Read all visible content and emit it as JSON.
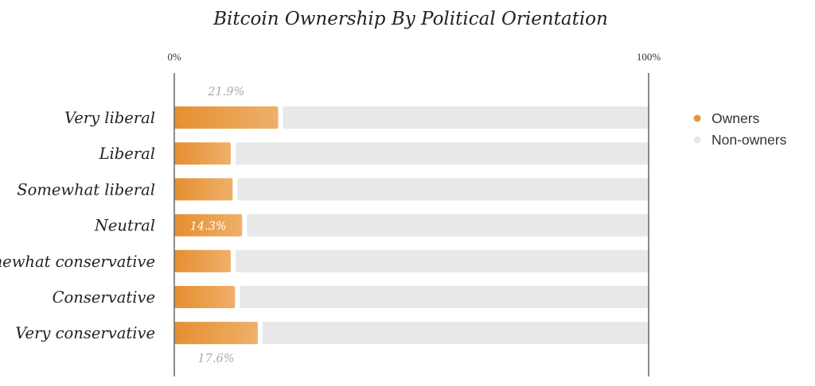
{
  "chart_data": {
    "type": "bar",
    "orientation": "horizontal",
    "stacked": true,
    "title": "Bitcoin Ownership By Political Orientation",
    "xlim": [
      0,
      100
    ],
    "x_ticks": [
      "0%",
      "100%"
    ],
    "categories": [
      "Very liberal",
      "Liberal",
      "Somewhat liberal",
      "Neutral",
      "Somewhat conservative",
      "Conservative",
      "Very conservative"
    ],
    "series": [
      {
        "name": "Owners",
        "color": "#e8963c",
        "values": [
          21.9,
          11.9,
          12.3,
          14.3,
          11.9,
          12.8,
          17.6
        ]
      },
      {
        "name": "Non-owners",
        "color": "#e8e8e8",
        "values": [
          78.1,
          88.1,
          87.7,
          85.7,
          88.1,
          87.2,
          82.4
        ]
      }
    ],
    "data_labels": [
      {
        "category": "Very liberal",
        "series": "Owners",
        "text": "21.9%",
        "placement": "above"
      },
      {
        "category": "Neutral",
        "series": "Owners",
        "text": "14.3%",
        "placement": "inside"
      },
      {
        "category": "Very conservative",
        "series": "Owners",
        "text": "17.6%",
        "placement": "below"
      }
    ],
    "legend": {
      "position": "right",
      "items": [
        "Owners",
        "Non-owners"
      ]
    },
    "grid": false,
    "colors": {
      "axis": "#666666",
      "label_text": "#222222",
      "data_label_muted": "#aaaaaa",
      "data_label_inside": "#ffffff"
    }
  }
}
